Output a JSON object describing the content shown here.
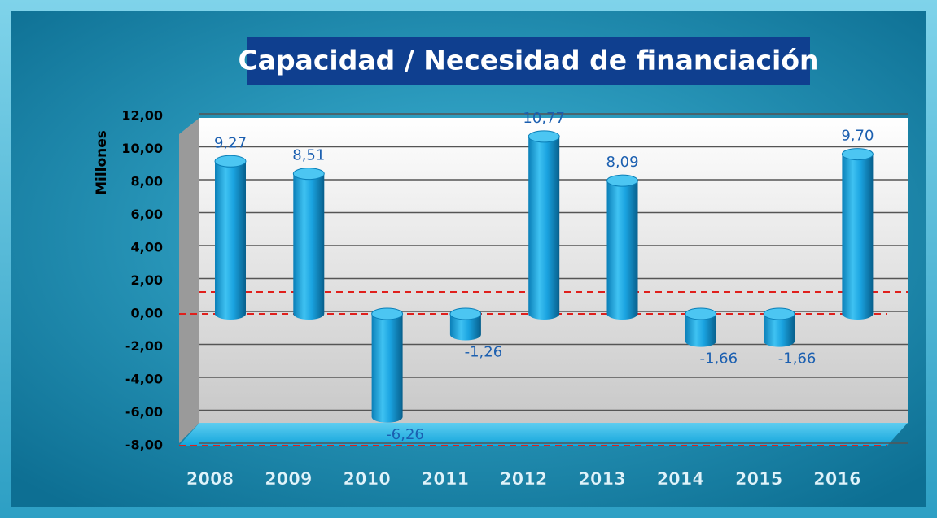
{
  "chart_data": {
    "type": "bar",
    "title": "Capacidad / Necesidad de financiación",
    "y_label": "Millones",
    "categories": [
      "2008",
      "2009",
      "2010",
      "2011",
      "2012",
      "2013",
      "2014",
      "2015",
      "2016"
    ],
    "values": [
      9.27,
      8.51,
      -6.26,
      -1.26,
      10.77,
      8.09,
      -1.66,
      -1.66,
      9.7
    ],
    "value_labels": [
      "9,27",
      "8,51",
      "-6,26",
      "-1,26",
      "10,77",
      "8,09",
      "-1,66",
      "-1,66",
      "9,70"
    ],
    "color": "#1aa3e0",
    "ylim": [
      -8,
      12
    ],
    "yticks": [
      {
        "value": -8,
        "label": "-8,00"
      },
      {
        "value": -6,
        "label": "-6,00"
      },
      {
        "value": -4,
        "label": "-4,00"
      },
      {
        "value": -2,
        "label": "-2,00"
      },
      {
        "value": 0,
        "label": "0,00"
      },
      {
        "value": 2,
        "label": "2,00"
      },
      {
        "value": 4,
        "label": "4,00"
      },
      {
        "value": 6,
        "label": "6,00"
      },
      {
        "value": 8,
        "label": "8,00"
      },
      {
        "value": 10,
        "label": "10,00"
      },
      {
        "value": 12,
        "label": "12,00"
      }
    ],
    "grid": true
  }
}
